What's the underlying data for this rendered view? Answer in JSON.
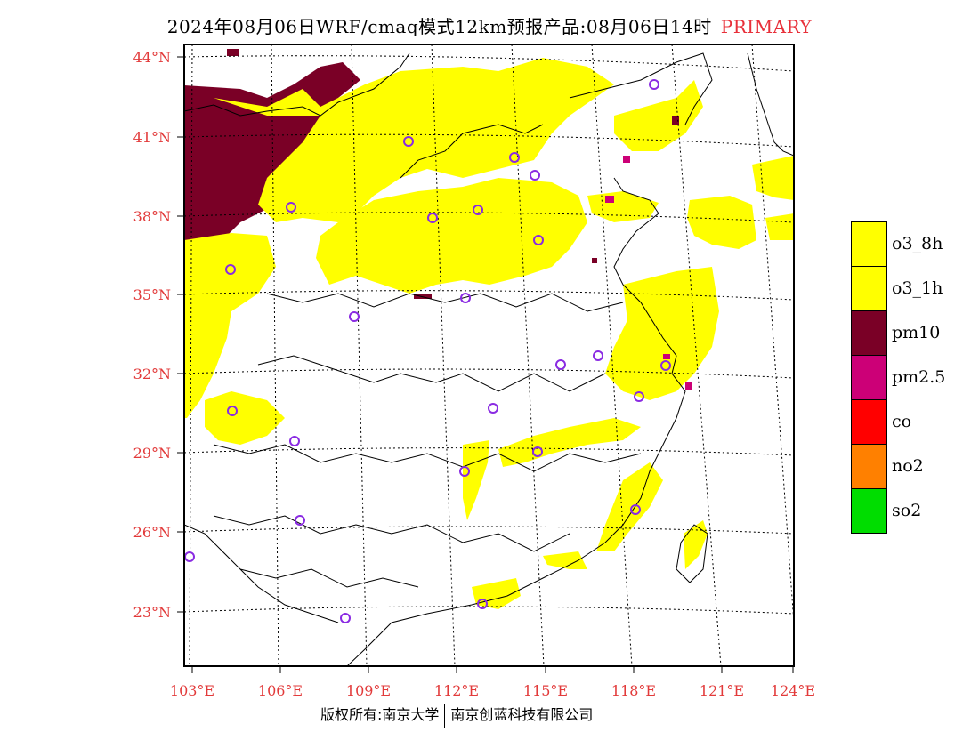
{
  "title": {
    "main": "2024年08月06日WRF/cmaq模式12km预报产品:08月06日14时",
    "tag": "PRIMARY"
  },
  "axes": {
    "lat_labels": [
      "44°N",
      "41°N",
      "38°N",
      "35°N",
      "32°N",
      "29°N",
      "26°N",
      "23°N"
    ],
    "lon_labels": [
      "103°E",
      "106°E",
      "109°E",
      "112°E",
      "115°E",
      "118°E",
      "121°E",
      "124°E"
    ]
  },
  "legend": {
    "items": [
      {
        "label": "o3_8h",
        "color": "#ffff00"
      },
      {
        "label": "o3_1h",
        "color": "#ffff00"
      },
      {
        "label": "pm10",
        "color": "#7a0026"
      },
      {
        "label": "pm2.5",
        "color": "#cc0077"
      },
      {
        "label": "co",
        "color": "#ff0000"
      },
      {
        "label": "no2",
        "color": "#ff8000"
      },
      {
        "label": "so2",
        "color": "#00dd00"
      }
    ]
  },
  "footer": {
    "copyright": "版权所有:南京大学",
    "company": "南京创蓝科技有限公司"
  },
  "colors": {
    "axis_label": "#e23a3a",
    "o3": "#ffff00",
    "pm10": "#7a0026",
    "pm25": "#cc0077",
    "station_marker": "#8a2be2"
  }
}
